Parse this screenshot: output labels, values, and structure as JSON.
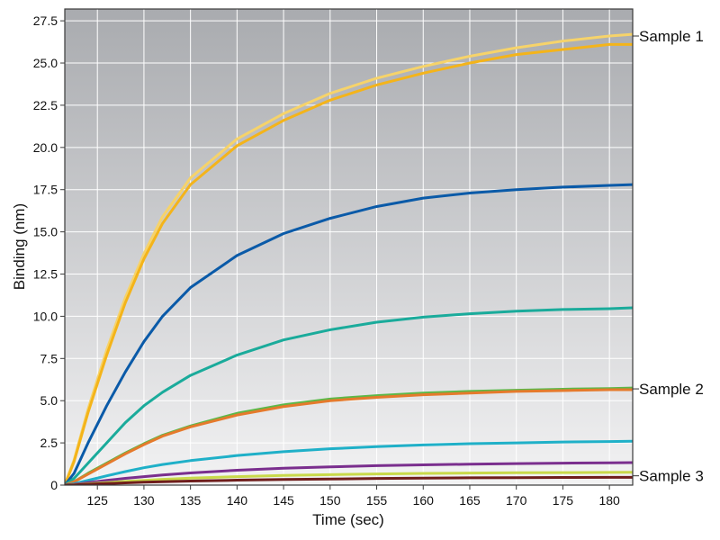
{
  "chart_data": {
    "type": "line",
    "title": "",
    "xlabel": "Time (sec)",
    "ylabel": "Binding (nm)",
    "xlim": [
      121.5,
      182.5
    ],
    "ylim": [
      0,
      28.2
    ],
    "grid": true,
    "xticks": [
      125,
      130,
      135,
      140,
      145,
      150,
      155,
      160,
      165,
      170,
      175,
      180
    ],
    "yticks": [
      0,
      2.5,
      5.0,
      7.5,
      10.0,
      12.5,
      15.0,
      17.5,
      20.0,
      22.5,
      25.0,
      27.5
    ],
    "ytick_labels": [
      "0",
      "2.5",
      "5.0",
      "7.5",
      "10.0",
      "12.5",
      "15.0",
      "17.5",
      "20.0",
      "22.5",
      "25.0",
      "27.5"
    ],
    "annotations": [
      {
        "text": "Sample 1",
        "y": 26.6
      },
      {
        "text": "Sample 2",
        "y": 5.7
      },
      {
        "text": "Sample 3",
        "y": 0.55
      }
    ],
    "colors": {
      "plot_bg_top": "#a9abaf",
      "plot_bg_bottom": "#f2f2f3",
      "grid": "#ffffff",
      "frame": "#3a3a3a"
    },
    "series": [
      {
        "color": "#f6d36a",
        "x": [
          121.5,
          122.5,
          124,
          126,
          128,
          130,
          132,
          135,
          140,
          145,
          150,
          155,
          160,
          165,
          170,
          175,
          180,
          182.5
        ],
        "values": [
          0,
          1.5,
          4.5,
          8.0,
          11.1,
          13.7,
          15.9,
          18.2,
          20.5,
          22.0,
          23.2,
          24.1,
          24.8,
          25.4,
          25.9,
          26.3,
          26.6,
          26.7
        ]
      },
      {
        "color": "#f4b41a",
        "x": [
          121.5,
          122.5,
          124,
          126,
          128,
          130,
          132,
          135,
          140,
          145,
          150,
          155,
          160,
          165,
          170,
          175,
          180,
          182.5
        ],
        "values": [
          0,
          1.4,
          4.3,
          7.7,
          10.8,
          13.4,
          15.5,
          17.8,
          20.1,
          21.6,
          22.8,
          23.7,
          24.4,
          25.0,
          25.5,
          25.8,
          26.1,
          26.1
        ]
      },
      {
        "color": "#0a5aa8",
        "x": [
          121.5,
          122.5,
          124,
          126,
          128,
          130,
          132,
          135,
          140,
          145,
          150,
          155,
          160,
          165,
          170,
          175,
          180,
          182.5
        ],
        "values": [
          0,
          0.7,
          2.5,
          4.7,
          6.7,
          8.5,
          10.0,
          11.7,
          13.6,
          14.9,
          15.8,
          16.5,
          17.0,
          17.3,
          17.5,
          17.65,
          17.75,
          17.8
        ]
      },
      {
        "color": "#1aab9b",
        "x": [
          121.5,
          122.5,
          124,
          126,
          128,
          130,
          132,
          135,
          140,
          145,
          150,
          155,
          160,
          165,
          170,
          175,
          180,
          182.5
        ],
        "values": [
          0,
          0.4,
          1.3,
          2.5,
          3.7,
          4.7,
          5.5,
          6.5,
          7.7,
          8.6,
          9.2,
          9.65,
          9.95,
          10.15,
          10.3,
          10.4,
          10.45,
          10.5
        ]
      },
      {
        "color": "#5cb848",
        "x": [
          121.5,
          122.5,
          124,
          126,
          128,
          130,
          132,
          135,
          140,
          145,
          150,
          155,
          160,
          165,
          170,
          175,
          180,
          182.5
        ],
        "values": [
          0,
          0.2,
          0.7,
          1.3,
          1.9,
          2.45,
          2.95,
          3.5,
          4.25,
          4.75,
          5.1,
          5.3,
          5.45,
          5.55,
          5.62,
          5.68,
          5.72,
          5.75
        ]
      },
      {
        "color": "#e57a2c",
        "x": [
          121.5,
          122.5,
          124,
          126,
          128,
          130,
          132,
          135,
          140,
          145,
          150,
          155,
          160,
          165,
          170,
          175,
          180,
          182.5
        ],
        "values": [
          0,
          0.2,
          0.65,
          1.25,
          1.85,
          2.4,
          2.9,
          3.45,
          4.15,
          4.65,
          5.0,
          5.2,
          5.35,
          5.45,
          5.55,
          5.6,
          5.65,
          5.65
        ]
      },
      {
        "color": "#1fb0c8",
        "x": [
          121.5,
          122.5,
          124,
          126,
          128,
          130,
          132,
          135,
          140,
          145,
          150,
          155,
          160,
          165,
          170,
          175,
          180,
          182.5
        ],
        "values": [
          0,
          0.08,
          0.28,
          0.55,
          0.8,
          1.03,
          1.22,
          1.45,
          1.75,
          1.98,
          2.15,
          2.28,
          2.38,
          2.45,
          2.5,
          2.55,
          2.58,
          2.6
        ]
      },
      {
        "color": "#7a2e8e",
        "x": [
          121.5,
          122.5,
          124,
          126,
          128,
          130,
          132,
          135,
          140,
          145,
          150,
          155,
          160,
          165,
          170,
          175,
          180,
          182.5
        ],
        "values": [
          0,
          0.04,
          0.15,
          0.28,
          0.4,
          0.5,
          0.6,
          0.72,
          0.88,
          1.0,
          1.08,
          1.15,
          1.2,
          1.24,
          1.27,
          1.3,
          1.32,
          1.33
        ]
      },
      {
        "color": "#c9d94a",
        "x": [
          121.5,
          122.5,
          124,
          126,
          128,
          130,
          132,
          135,
          140,
          145,
          150,
          155,
          160,
          165,
          170,
          175,
          180,
          182.5
        ],
        "values": [
          0,
          0.02,
          0.08,
          0.15,
          0.22,
          0.28,
          0.34,
          0.41,
          0.5,
          0.57,
          0.62,
          0.66,
          0.69,
          0.71,
          0.73,
          0.74,
          0.75,
          0.76
        ]
      },
      {
        "color": "#6f1d1b",
        "x": [
          121.5,
          122.5,
          124,
          126,
          128,
          130,
          132,
          135,
          140,
          145,
          150,
          155,
          160,
          165,
          170,
          175,
          180,
          182.5
        ],
        "values": [
          0,
          0.01,
          0.05,
          0.09,
          0.13,
          0.17,
          0.2,
          0.24,
          0.29,
          0.33,
          0.36,
          0.39,
          0.41,
          0.43,
          0.44,
          0.45,
          0.46,
          0.46
        ]
      }
    ]
  }
}
